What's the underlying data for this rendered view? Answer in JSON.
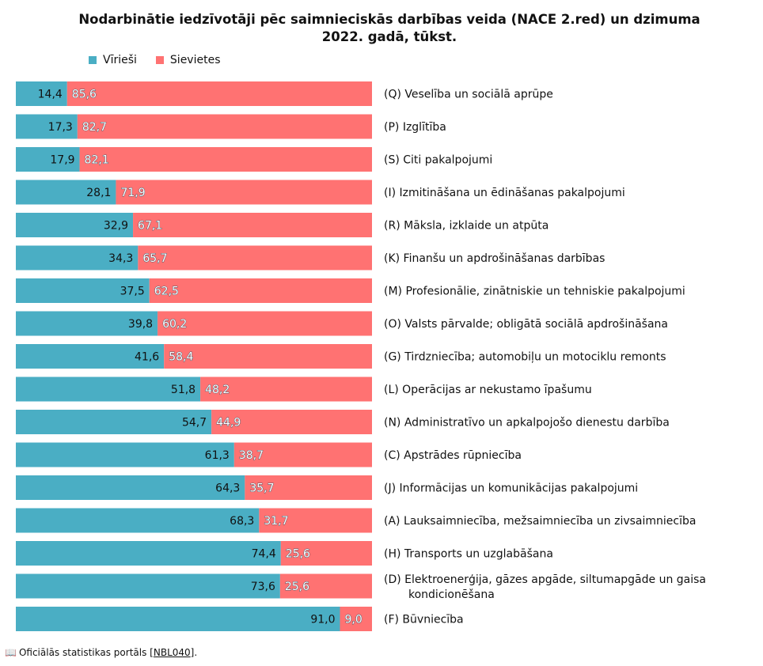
{
  "chart_data": {
    "type": "bar",
    "orientation": "horizontal",
    "stacked": true,
    "percent": true,
    "title_line1": "Nodarbinātie iedzīvotāji pēc saimnieciskās darbības veida (NACE 2.red) un dzimuma",
    "title_line2": "2022. gadā, tūkst.",
    "legend": [
      "Vīrieši",
      "Sievietes"
    ],
    "categories": [
      [
        "(Q) Veselība un sociālā aprūpe"
      ],
      [
        "(P) Izglītība"
      ],
      [
        "(S) Citi pakalpojumi"
      ],
      [
        "(I) Izmitināšana un ēdināšanas pakalpojumi"
      ],
      [
        "(R) Māksla, izklaide un atpūta"
      ],
      [
        "(K) Finanšu un apdrošināšanas darbības"
      ],
      [
        "(M) Profesionālie, zinātniskie un tehniskie pakalpojumi"
      ],
      [
        "(O) Valsts pārvalde; obligātā sociālā apdrošināšana"
      ],
      [
        "(G) Tirdzniecība; automobiļu un motociklu remonts"
      ],
      [
        "(L) Operācijas ar nekustamo īpašumu"
      ],
      [
        "(N) Administratīvo un apkalpojošo dienestu darbība"
      ],
      [
        "(C) Apstrādes rūpniecība"
      ],
      [
        "(J) Informācijas un komunikācijas pakalpojumi"
      ],
      [
        "(A) Lauksaimniecība, mežsaimniecība un zivsaimniecība"
      ],
      [
        "(H) Transports un uzglabāšana"
      ],
      [
        "(D) Elektroenerģija, gāzes apgāde, siltumapgāde un gaisa",
        "kondicionēšana"
      ],
      [
        "(F) Būvniecība"
      ]
    ],
    "series": [
      {
        "name": "Vīrieši",
        "color": "#4aaec4",
        "values": [
          14.4,
          17.3,
          17.9,
          28.1,
          32.9,
          34.3,
          37.5,
          39.8,
          41.6,
          51.8,
          54.7,
          61.3,
          64.3,
          68.3,
          74.4,
          73.6,
          91.0
        ],
        "labels": [
          "14,4",
          "17,3",
          "17,9",
          "28,1",
          "32,9",
          "34,3",
          "37,5",
          "39,8",
          "41,6",
          "51,8",
          "54,7",
          "61,3",
          "64,3",
          "68,3",
          "74,4",
          "73,6",
          "91,0"
        ]
      },
      {
        "name": "Sievietes",
        "color": "#ff7272",
        "values": [
          85.6,
          82.7,
          82.1,
          71.9,
          67.1,
          65.7,
          62.5,
          60.2,
          58.4,
          48.2,
          44.9,
          38.7,
          35.7,
          31.7,
          25.6,
          25.6,
          9.0
        ],
        "labels": [
          "85,6",
          "82,7",
          "82,1",
          "71,9",
          "67,1",
          "65,7",
          "62,5",
          "60,2",
          "58,4",
          "48,2",
          "44,9",
          "38,7",
          "35,7",
          "31,7",
          "25,6",
          "25,6",
          "9,0"
        ]
      }
    ]
  },
  "footer": {
    "source_text": "Oficiālās statistikas portāls",
    "link_text": "NBL040",
    "open_bracket": "[",
    "close_bracket": "]."
  },
  "icons": {
    "source": "book-icon"
  }
}
